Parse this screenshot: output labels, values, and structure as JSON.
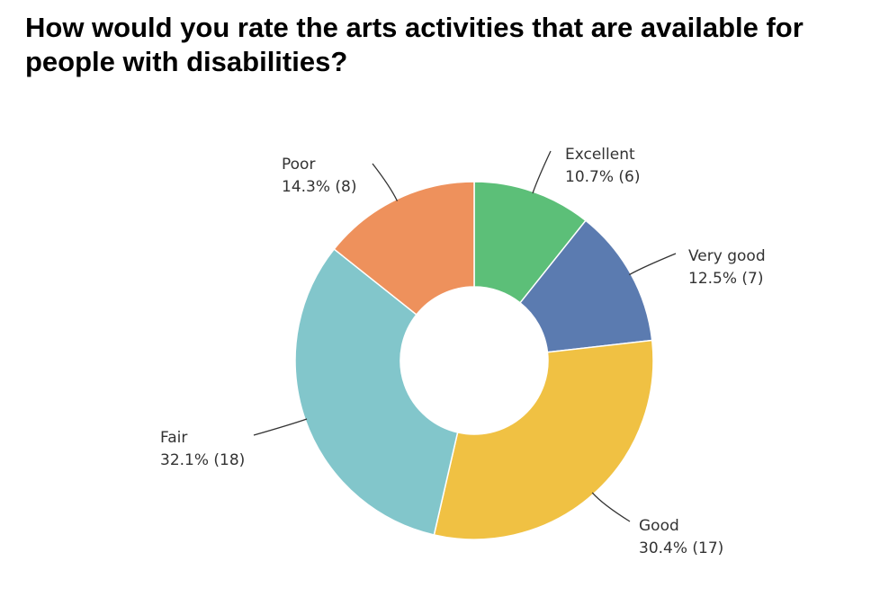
{
  "title": "How would you rate the arts activities that are available for people with disabilities?",
  "chart_data": {
    "type": "pie",
    "donut": true,
    "title": "How would you rate the arts activities that are available for people with disabilities?",
    "slices": [
      {
        "name": "Excellent",
        "percent": 10.7,
        "count": 6,
        "percent_label": "10.7% (6)",
        "color": "#5cbf78"
      },
      {
        "name": "Very good",
        "percent": 12.5,
        "count": 7,
        "percent_label": "12.5% (7)",
        "color": "#5b7bb0"
      },
      {
        "name": "Good",
        "percent": 30.4,
        "count": 17,
        "percent_label": "30.4% (17)",
        "color": "#f0c143"
      },
      {
        "name": "Fair",
        "percent": 32.1,
        "count": 18,
        "percent_label": "32.1% (18)",
        "color": "#82c6cb"
      },
      {
        "name": "Poor",
        "percent": 14.3,
        "count": 8,
        "percent_label": "14.3% (8)",
        "color": "#ee915c"
      }
    ],
    "start": "12 o'clock",
    "direction": "clockwise",
    "legend": "none (slice labels with leader lines)"
  }
}
